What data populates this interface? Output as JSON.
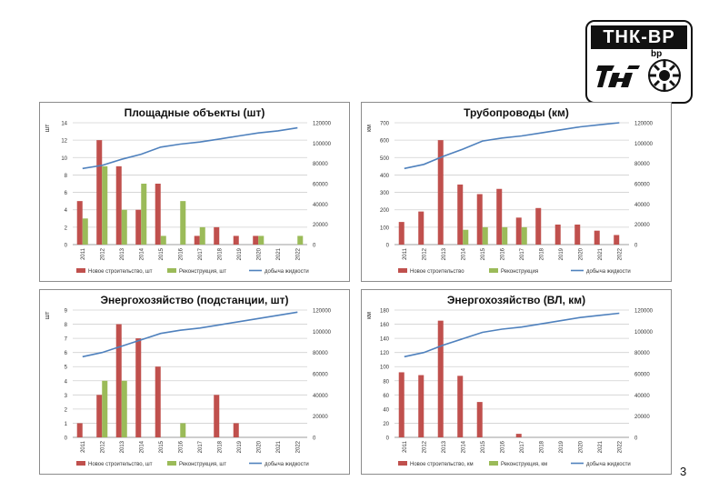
{
  "logo": {
    "text": "ТНК-ВР",
    "bp_text": "bp"
  },
  "page_number": "3",
  "colors": {
    "new": "#c0504d",
    "recon": "#9bbb59",
    "line": "#4f81bd",
    "grid": "#d0d0d0"
  },
  "chart_data": [
    {
      "type": "bar",
      "title": "Площадные объекты (шт)",
      "ylabel": "шт",
      "categories": [
        "2011",
        "2012",
        "2013",
        "2014",
        "2015",
        "2016",
        "2017",
        "2018",
        "2019",
        "2020",
        "2021",
        "2022"
      ],
      "series": [
        {
          "name": "Новое строительство, шт",
          "values": [
            5,
            12,
            9,
            4,
            7,
            0,
            1,
            2,
            1,
            1,
            0,
            0
          ]
        },
        {
          "name": "Реконструкция, шт",
          "values": [
            3,
            9,
            4,
            7,
            1,
            5,
            2,
            0,
            0,
            1,
            0,
            1
          ]
        }
      ],
      "line": {
        "name": "добыча жидкости",
        "values": [
          75000,
          78000,
          84000,
          89000,
          96000,
          99000,
          101000,
          104000,
          107000,
          110000,
          112000,
          115000
        ]
      },
      "y_left": {
        "min": 0,
        "max": 14,
        "ticks": [
          "0",
          "2",
          "4",
          "6",
          "8",
          "10",
          "12",
          "14"
        ]
      },
      "y_right": {
        "min": 0,
        "max": 120000,
        "ticks": [
          "0",
          "20000",
          "40000",
          "60000",
          "80000",
          "100000",
          "120000"
        ]
      }
    },
    {
      "type": "bar",
      "title": "Трубопроводы (км)",
      "ylabel": "км",
      "categories": [
        "2011",
        "2012",
        "2013",
        "2014",
        "2015",
        "2016",
        "2017",
        "2018",
        "2019",
        "2020",
        "2021",
        "2022"
      ],
      "series": [
        {
          "name": "Новое строительство",
          "values": [
            130,
            190,
            600,
            345,
            290,
            320,
            155,
            210,
            115,
            115,
            80,
            55
          ]
        },
        {
          "name": "Реконструкция",
          "values": [
            0,
            0,
            0,
            85,
            100,
            100,
            100,
            0,
            0,
            0,
            0,
            0
          ]
        }
      ],
      "line": {
        "name": "добыча жидкости",
        "values": [
          75000,
          79000,
          87000,
          94000,
          102000,
          105000,
          107000,
          110000,
          113000,
          116000,
          118000,
          120000
        ]
      },
      "y_left": {
        "min": 0,
        "max": 700,
        "ticks": [
          "0",
          "100",
          "200",
          "300",
          "400",
          "500",
          "600",
          "700"
        ]
      },
      "y_right": {
        "min": 0,
        "max": 120000,
        "ticks": [
          "0",
          "20000",
          "40000",
          "60000",
          "80000",
          "100000",
          "120000"
        ]
      }
    },
    {
      "type": "bar",
      "title": "Энергохозяйство (подстанции, шт)",
      "ylabel": "шт",
      "categories": [
        "2011",
        "2012",
        "2013",
        "2014",
        "2015",
        "2016",
        "2017",
        "2018",
        "2019",
        "2020",
        "2021",
        "2022"
      ],
      "series": [
        {
          "name": "Новое строительство, шт",
          "values": [
            1,
            3,
            8,
            7,
            5,
            0,
            0,
            3,
            1,
            0,
            0,
            0
          ]
        },
        {
          "name": "Реконструкция, шт",
          "values": [
            0,
            4,
            4,
            0,
            0,
            1,
            0,
            0,
            0,
            0,
            0,
            0
          ]
        }
      ],
      "line": {
        "name": "добыча жидкости",
        "values": [
          76000,
          80000,
          86000,
          92000,
          98000,
          101000,
          103000,
          106000,
          109000,
          112000,
          115000,
          118000
        ]
      },
      "y_left": {
        "min": 0,
        "max": 9,
        "ticks": [
          "0",
          "1",
          "2",
          "3",
          "4",
          "5",
          "6",
          "7",
          "8",
          "9"
        ]
      },
      "y_right": {
        "min": 0,
        "max": 120000,
        "ticks": [
          "0",
          "20000",
          "40000",
          "60000",
          "80000",
          "100000",
          "120000"
        ]
      }
    },
    {
      "type": "bar",
      "title": "Энергохозяйство (ВЛ, км)",
      "ylabel": "км",
      "categories": [
        "2011",
        "2012",
        "2013",
        "2014",
        "2015",
        "2016",
        "2017",
        "2018",
        "2019",
        "2020",
        "2021",
        "2022"
      ],
      "series": [
        {
          "name": "Новое строительство, км",
          "values": [
            92,
            88,
            165,
            87,
            50,
            0,
            5,
            0,
            0,
            0,
            0,
            0
          ]
        },
        {
          "name": "Реконструкция, км",
          "values": [
            0,
            0,
            0,
            0,
            0,
            0,
            0,
            0,
            0,
            0,
            0,
            0
          ]
        }
      ],
      "line": {
        "name": "добыча жидкости",
        "values": [
          76000,
          80000,
          87000,
          93000,
          99000,
          102000,
          104000,
          107000,
          110000,
          113000,
          115000,
          117000
        ]
      },
      "y_left": {
        "min": 0,
        "max": 180,
        "ticks": [
          "0",
          "20",
          "40",
          "60",
          "80",
          "100",
          "120",
          "140",
          "160",
          "180"
        ]
      },
      "y_right": {
        "min": 0,
        "max": 120000,
        "ticks": [
          "0",
          "20000",
          "40000",
          "60000",
          "80000",
          "100000",
          "120000"
        ]
      }
    }
  ]
}
